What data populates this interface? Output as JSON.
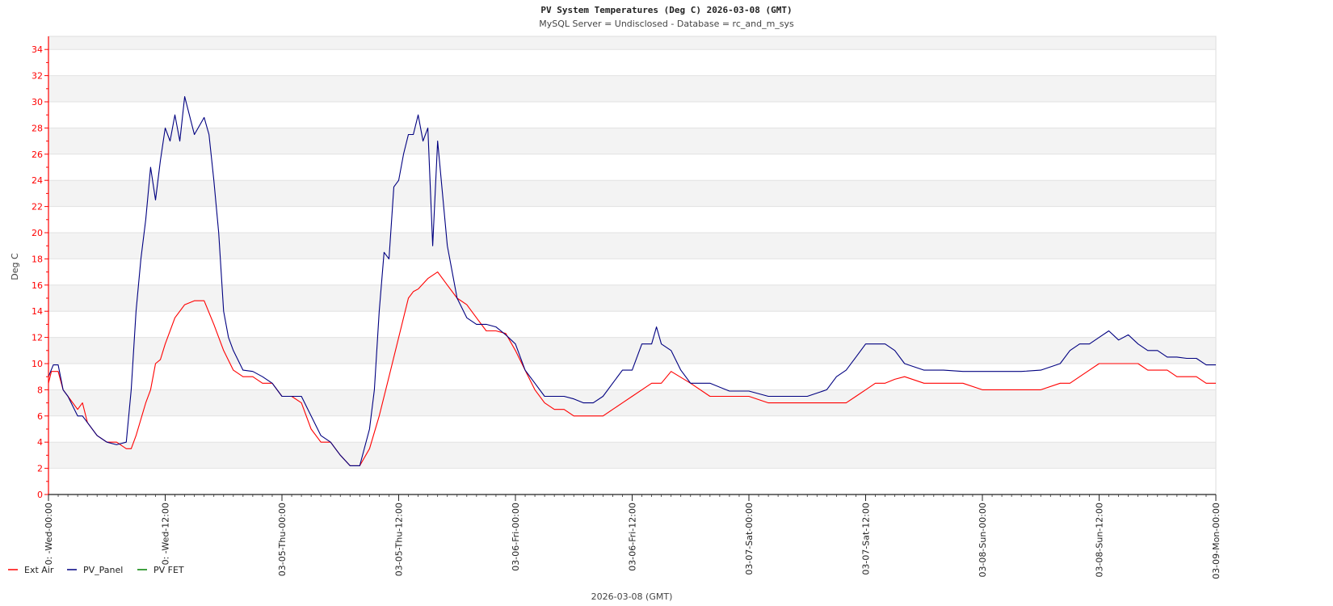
{
  "chart_data": {
    "type": "line",
    "title": "PV System Temperatures (Deg C) 2026-03-08 (GMT)",
    "subtitle": "MySQL Server = Undisclosed - Database = rc_and_m_sys",
    "ylabel": "Deg C",
    "xlabel": "2026-03-08 (GMT)",
    "ylim": [
      0,
      35
    ],
    "yticks": [
      0,
      2,
      4,
      6,
      8,
      10,
      12,
      14,
      16,
      18,
      20,
      22,
      24,
      26,
      28,
      30,
      32,
      34
    ],
    "xlim_hours": [
      0,
      120
    ],
    "xticks": [
      {
        "h": 0,
        "label": "0: -Wed-00:00"
      },
      {
        "h": 12,
        "label": "0: -Wed-12:00"
      },
      {
        "h": 24,
        "label": "03-05-Thu-00:00"
      },
      {
        "h": 36,
        "label": "03-05-Thu-12:00"
      },
      {
        "h": 48,
        "label": "03-06-Fri-00:00"
      },
      {
        "h": 60,
        "label": "03-06-Fri-12:00"
      },
      {
        "h": 72,
        "label": "03-07-Sat-00:00"
      },
      {
        "h": 84,
        "label": "03-07-Sat-12:00"
      },
      {
        "h": 96,
        "label": "03-08-Sun-00:00"
      },
      {
        "h": 108,
        "label": "03-08-Sun-12:00"
      },
      {
        "h": 120,
        "label": "03-09-Mon-00:00"
      }
    ],
    "grid": true,
    "legend_position": "bottom-left",
    "series": [
      {
        "name": "Ext Air",
        "color": "#ff0000",
        "x": [
          0,
          0.3,
          1,
          1.5,
          2,
          3,
          3.5,
          4,
          5,
          6,
          7,
          8,
          8.5,
          9,
          10,
          10.5,
          11,
          11.5,
          12,
          13,
          14,
          15,
          16,
          17,
          18,
          19,
          20,
          21,
          22,
          23,
          24,
          25,
          26,
          27,
          28,
          29,
          29.5,
          30,
          31,
          32,
          33,
          34,
          35,
          36,
          37,
          37.5,
          38,
          39,
          40,
          41,
          42,
          43,
          44,
          45,
          46,
          47,
          48,
          49,
          50,
          51,
          52,
          53,
          54,
          55,
          56,
          57,
          58,
          59,
          60,
          61,
          62,
          63,
          64,
          66,
          68,
          70,
          72,
          74,
          76,
          78,
          80,
          81,
          82,
          83,
          84,
          85,
          86,
          87,
          88,
          90,
          92,
          94,
          96,
          98,
          100,
          102,
          104,
          105,
          106,
          107,
          108,
          109,
          110,
          111,
          112,
          113,
          114,
          115,
          116,
          117,
          118,
          119,
          120
        ],
        "y": [
          8.5,
          9.4,
          9.4,
          8.0,
          7.5,
          6.5,
          7.0,
          5.5,
          4.5,
          4.0,
          4.0,
          3.5,
          3.5,
          4.5,
          7.0,
          8.0,
          10.0,
          10.3,
          11.5,
          13.5,
          14.5,
          14.8,
          14.8,
          13.0,
          11.0,
          9.5,
          9.0,
          9.0,
          8.5,
          8.5,
          7.5,
          7.5,
          7.0,
          5.0,
          4.0,
          4.0,
          3.5,
          3.0,
          2.2,
          2.2,
          3.5,
          6.0,
          9.0,
          12.0,
          15.0,
          15.5,
          15.7,
          16.5,
          17.0,
          16.0,
          15.0,
          14.5,
          13.5,
          12.5,
          12.5,
          12.3,
          11.0,
          9.5,
          8.0,
          7.0,
          6.5,
          6.5,
          6.0,
          6.0,
          6.0,
          6.0,
          6.5,
          7.0,
          7.5,
          8.0,
          8.5,
          8.5,
          9.4,
          8.5,
          7.5,
          7.5,
          7.5,
          7.0,
          7.0,
          7.0,
          7.0,
          7.0,
          7.0,
          7.5,
          8.0,
          8.5,
          8.5,
          8.8,
          9.0,
          8.5,
          8.5,
          8.5,
          8.0,
          8.0,
          8.0,
          8.0,
          8.5,
          8.5,
          9.0,
          9.5,
          10.0,
          10.0,
          10.0,
          10.0,
          10.0,
          9.5,
          9.5,
          9.5,
          9.0,
          9.0,
          9.0,
          8.5,
          8.5
        ]
      },
      {
        "name": "PV_Panel",
        "color": "#000080",
        "x": [
          0,
          0.5,
          1,
          1.5,
          2,
          3,
          3.5,
          4,
          5,
          6,
          7,
          8,
          8.5,
          9,
          9.5,
          10,
          10.5,
          11,
          11.5,
          12,
          12.5,
          13,
          13.5,
          14,
          15,
          16,
          16.5,
          17,
          17.5,
          18,
          18.5,
          19,
          20,
          21,
          22,
          23,
          24,
          25,
          26,
          27,
          28,
          29,
          29.5,
          30,
          31,
          32,
          33,
          33.5,
          34,
          34.5,
          35,
          35.5,
          36,
          36.5,
          37,
          37.5,
          38,
          38.5,
          39,
          39.5,
          40,
          40.5,
          41,
          42,
          43,
          44,
          45,
          46,
          47,
          48,
          49,
          50,
          51,
          52,
          53,
          54,
          55,
          56,
          57,
          58,
          59,
          60,
          61,
          62,
          62.5,
          63,
          64,
          65,
          66,
          68,
          70,
          72,
          74,
          76,
          78,
          80,
          81,
          82,
          83,
          84,
          85,
          86,
          87,
          88,
          90,
          92,
          94,
          96,
          98,
          100,
          102,
          104,
          105,
          106,
          107,
          108,
          109,
          110,
          111,
          112,
          113,
          114,
          115,
          116,
          117,
          118,
          119,
          120
        ],
        "y": [
          9.0,
          9.9,
          9.9,
          8.0,
          7.5,
          6.0,
          6.0,
          5.5,
          4.5,
          4.0,
          3.8,
          4.0,
          8.0,
          14.0,
          18.0,
          21.0,
          25.0,
          22.5,
          25.5,
          28.0,
          27.0,
          29.0,
          27.0,
          30.4,
          27.5,
          28.8,
          27.5,
          24.0,
          20.0,
          14.0,
          12.0,
          11.0,
          9.5,
          9.4,
          9.0,
          8.5,
          7.5,
          7.5,
          7.5,
          6.0,
          4.5,
          4.0,
          3.5,
          3.0,
          2.2,
          2.2,
          5.0,
          8.0,
          14.0,
          18.5,
          18.0,
          23.5,
          24.0,
          26.0,
          27.5,
          27.5,
          29.0,
          27.0,
          28.0,
          19.0,
          27.0,
          23.0,
          19.0,
          15.0,
          13.5,
          13.0,
          13.0,
          12.8,
          12.2,
          11.5,
          9.5,
          8.5,
          7.5,
          7.5,
          7.5,
          7.3,
          7.0,
          7.0,
          7.5,
          8.5,
          9.5,
          9.5,
          11.5,
          11.5,
          12.8,
          11.5,
          11.0,
          9.5,
          8.5,
          8.5,
          7.9,
          7.9,
          7.5,
          7.5,
          7.5,
          8.0,
          9.0,
          9.5,
          10.5,
          11.5,
          11.5,
          11.5,
          11.0,
          10.0,
          9.5,
          9.5,
          9.4,
          9.4,
          9.4,
          9.4,
          9.5,
          10.0,
          11.0,
          11.5,
          11.5,
          12.0,
          12.5,
          11.8,
          12.2,
          11.5,
          11.0,
          11.0,
          10.5,
          10.5,
          10.4,
          10.4,
          9.9,
          9.9
        ]
      },
      {
        "name": "PV FET",
        "color": "#008000",
        "x": [],
        "y": []
      }
    ]
  }
}
